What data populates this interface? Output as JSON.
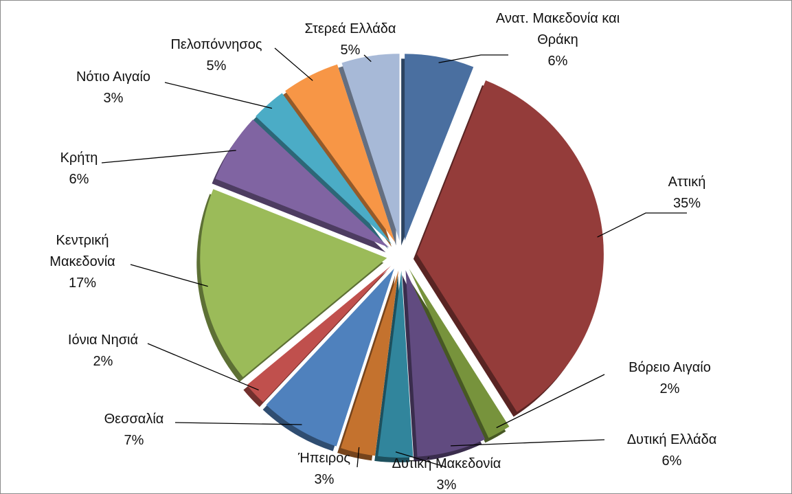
{
  "chart_data": {
    "type": "pie",
    "categories": [
      "Ανατ. Μακεδονία και Θράκη",
      "Αττική",
      "Βόρειο Αιγαίο",
      "Δυτική Ελλάδα",
      "Δυτική Μακεδονία",
      "Ήπειρος",
      "Θεσσαλία",
      "Ιόνια Νησιά",
      "Κεντρική Μακεδονία",
      "Κρήτη",
      "Νότιο Αιγαίο",
      "Πελοπόννησος",
      "Στερεά Ελλάδα"
    ],
    "values": [
      6,
      35,
      2,
      6,
      3,
      3,
      7,
      2,
      17,
      6,
      3,
      5,
      5
    ],
    "value_labels": [
      "6%",
      "35%",
      "2%",
      "6%",
      "3%",
      "3%",
      "7%",
      "2%",
      "17%",
      "6%",
      "3%",
      "5%",
      "5%"
    ],
    "colors": [
      "#4a6fa0",
      "#943c3a",
      "#77933c",
      "#614b80",
      "#31859c",
      "#c4722e",
      "#4f81bd",
      "#c0504d",
      "#9bbb59",
      "#8064a2",
      "#4bacc6",
      "#f79646",
      "#a7b9d7"
    ]
  }
}
